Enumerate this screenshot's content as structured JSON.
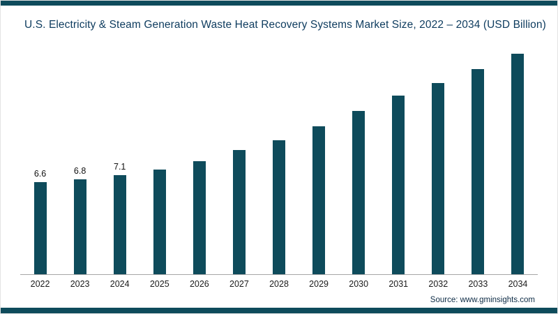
{
  "chart_data": {
    "type": "bar",
    "title": "U.S. Electricity & Steam Generation Waste Heat Recovery Systems Market Size, 2022 – 2034 (USD Billion)",
    "categories": [
      "2022",
      "2023",
      "2024",
      "2025",
      "2026",
      "2027",
      "2028",
      "2029",
      "2030",
      "2031",
      "2032",
      "2033",
      "2034"
    ],
    "values": [
      6.6,
      6.8,
      7.1,
      7.5,
      8.1,
      8.9,
      9.6,
      10.6,
      11.7,
      12.8,
      13.7,
      14.7,
      15.8
    ],
    "value_labels": [
      "6.6",
      "6.8",
      "7.1",
      "",
      "",
      "",
      "",
      "",
      "",
      "",
      "",
      "",
      ""
    ],
    "xlabel": "",
    "ylabel": "",
    "ylim": [
      0,
      16.5
    ],
    "grid": false,
    "legend": "none",
    "bar_color": "#0e4b5b",
    "axis_line_color": "#a6a6a6"
  },
  "frame": {
    "accent_color": "#0e4b5b"
  },
  "source": {
    "label": "Source: www.gminsights.com"
  }
}
